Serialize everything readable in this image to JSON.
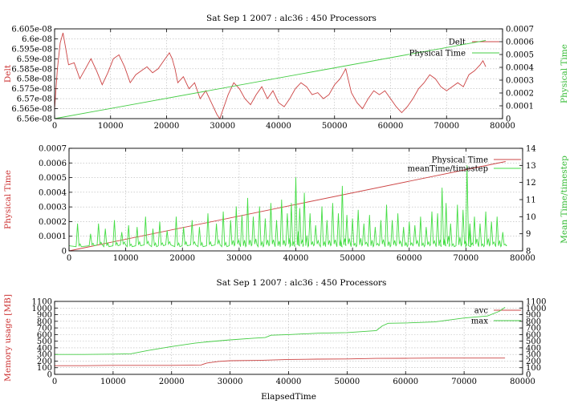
{
  "chart_data": [
    {
      "type": "line",
      "title": "Sat Sep 1 2007 : alc36 : 450 Processors",
      "xlabel": "",
      "ylabel": "Delt",
      "y2label": "Physical Time",
      "xlim": [
        0,
        80000
      ],
      "ylim": [
        6.56e-08,
        6.605e-08
      ],
      "y2lim": [
        0,
        0.0007
      ],
      "grid": true,
      "legend": "top-right",
      "x_ticks": [
        "0",
        "10000",
        "20000",
        "30000",
        "40000",
        "50000",
        "60000",
        "70000",
        "80000"
      ],
      "y_ticks": [
        "6.56e-08",
        "6.565e-08",
        "6.57e-08",
        "6.575e-08",
        "6.58e-08",
        "6.585e-08",
        "6.59e-08",
        "6.595e-08",
        "6.6e-08",
        "6.605e-08"
      ],
      "y2_ticks": [
        "0",
        "0.0001",
        "0.0002",
        "0.0003",
        "0.0004",
        "0.0005",
        "0.0006",
        "0.0007"
      ],
      "series": [
        {
          "name": "Delt",
          "axis": "y",
          "color": "#cc4444",
          "x": [
            0,
            500,
            1000,
            1500,
            2500,
            3500,
            4500,
            5500,
            6500,
            7500,
            8500,
            9500,
            10500,
            11500,
            12500,
            13500,
            14500,
            15500,
            16500,
            17500,
            18500,
            19500,
            20500,
            21000,
            21500,
            22000,
            23000,
            24000,
            25000,
            26000,
            27000,
            28000,
            29000,
            29500,
            30000,
            31000,
            32000,
            33000,
            34000,
            35000,
            36000,
            37000,
            38000,
            39000,
            40000,
            41000,
            42000,
            43000,
            44000,
            45000,
            46000,
            47000,
            48000,
            49000,
            50000,
            51000,
            52000,
            53000,
            54000,
            55000,
            56000,
            57000,
            58000,
            59000,
            60000,
            61000,
            62000,
            63000,
            64000,
            65000,
            66000,
            67000,
            68000,
            69000,
            70000,
            71000,
            72000,
            73000,
            74000,
            75000,
            76000,
            76500,
            77000
          ],
          "values": [
            6.565e-08,
            6.585e-08,
            6.598e-08,
            6.603e-08,
            6.587e-08,
            6.588e-08,
            6.58e-08,
            6.585e-08,
            6.59e-08,
            6.584e-08,
            6.577e-08,
            6.583e-08,
            6.59e-08,
            6.592e-08,
            6.586e-08,
            6.578e-08,
            6.582e-08,
            6.584e-08,
            6.586e-08,
            6.583e-08,
            6.585e-08,
            6.589e-08,
            6.593e-08,
            6.59e-08,
            6.585e-08,
            6.578e-08,
            6.581e-08,
            6.575e-08,
            6.578e-08,
            6.57e-08,
            6.574e-08,
            6.568e-08,
            6.562e-08,
            6.56e-08,
            6.564e-08,
            6.572e-08,
            6.578e-08,
            6.575e-08,
            6.57e-08,
            6.567e-08,
            6.572e-08,
            6.576e-08,
            6.57e-08,
            6.574e-08,
            6.568e-08,
            6.566e-08,
            6.57e-08,
            6.575e-08,
            6.578e-08,
            6.576e-08,
            6.572e-08,
            6.573e-08,
            6.57e-08,
            6.572e-08,
            6.577e-08,
            6.58e-08,
            6.585e-08,
            6.573e-08,
            6.568e-08,
            6.565e-08,
            6.57e-08,
            6.574e-08,
            6.572e-08,
            6.574e-08,
            6.57e-08,
            6.566e-08,
            6.563e-08,
            6.566e-08,
            6.57e-08,
            6.575e-08,
            6.578e-08,
            6.582e-08,
            6.58e-08,
            6.576e-08,
            6.574e-08,
            6.576e-08,
            6.578e-08,
            6.576e-08,
            6.582e-08,
            6.584e-08,
            6.587e-08,
            6.589e-08,
            6.586e-08
          ]
        },
        {
          "name": "Physical Time",
          "axis": "y2",
          "color": "#44cc44",
          "x": [
            0,
            77000
          ],
          "values": [
            0,
            0.00061
          ]
        }
      ]
    },
    {
      "type": "line",
      "title": "",
      "xlabel": "",
      "ylabel": "Physical Time",
      "y2label": "Mean Time/timestep",
      "xlim": [
        0,
        80000
      ],
      "ylim": [
        0,
        0.0007
      ],
      "y2lim": [
        8,
        14
      ],
      "grid": true,
      "legend": "top-right",
      "x_ticks": [
        "0",
        "10000",
        "20000",
        "30000",
        "40000",
        "50000",
        "60000",
        "70000",
        "80000"
      ],
      "y_ticks": [
        "0",
        "0.0001",
        "0.0002",
        "0.0003",
        "0.0004",
        "0.0005",
        "0.0006",
        "0.0007"
      ],
      "y2_ticks": [
        "8",
        "9",
        "10",
        "11",
        "12",
        "13",
        "14"
      ],
      "series": [
        {
          "name": "Physical Time",
          "axis": "y",
          "color": "#cc4444",
          "x": [
            0,
            77000
          ],
          "values": [
            0,
            0.00061
          ]
        },
        {
          "name": "meanTime/timestep",
          "axis": "y2",
          "color": "#44dd44",
          "baseline": 8.3,
          "spikes_x": [
            1500,
            3800,
            5200,
            6400,
            8000,
            9300,
            10500,
            12000,
            13500,
            14800,
            16000,
            17300,
            18900,
            20200,
            21700,
            23000,
            24500,
            26000,
            27200,
            28500,
            29500,
            30500,
            31500,
            32500,
            33600,
            34600,
            35600,
            36600,
            37500,
            38500,
            39200,
            40000,
            40700,
            41500,
            42500,
            43500,
            44600,
            45500,
            46500,
            47500,
            48200,
            49000,
            50000,
            51000,
            52000,
            53000,
            54000,
            55000,
            56000,
            57000,
            58000,
            59000,
            60000,
            61000,
            62000,
            63000,
            64000,
            65000,
            65800,
            66500,
            67300,
            68500,
            69500,
            70200,
            70700,
            71500,
            72500,
            73500,
            74500,
            75500,
            76500
          ],
          "spikes_y": [
            9.6,
            9.0,
            9.6,
            9.3,
            9.8,
            9.1,
            9.5,
            9.4,
            10.0,
            9.3,
            9.7,
            9.2,
            10.0,
            9.4,
            9.8,
            9.4,
            10.2,
            9.6,
            10.3,
            9.8,
            10.6,
            10.1,
            11.1,
            10.0,
            10.6,
            9.9,
            10.8,
            9.8,
            11.0,
            10.2,
            10.8,
            12.3,
            10.5,
            11.4,
            10.2,
            9.5,
            10.6,
            9.8,
            10.8,
            10.2,
            11.8,
            10.1,
            9.9,
            10.4,
            9.6,
            10.1,
            9.4,
            9.8,
            10.7,
            9.8,
            10.2,
            9.4,
            9.7,
            9.5,
            10.0,
            9.4,
            10.3,
            10.2,
            11.7,
            10.8,
            9.6,
            10.7,
            10.4,
            13.0,
            9.6,
            10.0,
            9.6,
            10.3,
            9.7,
            10.0,
            9.1
          ]
        }
      ]
    },
    {
      "type": "line",
      "title": "Sat Sep 1 2007 : alc36 : 450 Processors",
      "xlabel": "ElapsedTime",
      "ylabel": "Memory usage [MB]",
      "y2label": "",
      "xlim": [
        0,
        80000
      ],
      "ylim": [
        0,
        1100
      ],
      "y2lim": [
        0,
        1100
      ],
      "grid": true,
      "legend": "top-right",
      "x_ticks": [
        "0",
        "10000",
        "20000",
        "30000",
        "40000",
        "50000",
        "60000",
        "70000",
        "80000"
      ],
      "y_ticks": [
        "0",
        "100",
        "200",
        "300",
        "400",
        "500",
        "600",
        "700",
        "800",
        "900",
        "1000",
        "1100"
      ],
      "y2_ticks": [
        "0",
        "100",
        "200",
        "300",
        "400",
        "500",
        "600",
        "700",
        "800",
        "900",
        "1000",
        "1100"
      ],
      "series": [
        {
          "name": "avc",
          "axis": "y",
          "color": "#cc4444",
          "x": [
            0,
            5000,
            10000,
            15000,
            20000,
            25000,
            26000,
            28000,
            30000,
            35000,
            40000,
            45000,
            50000,
            55000,
            60000,
            65000,
            70000,
            75000,
            77000
          ],
          "values": [
            130,
            130,
            135,
            135,
            135,
            140,
            170,
            195,
            205,
            210,
            225,
            230,
            232,
            240,
            242,
            245,
            245,
            245,
            245
          ]
        },
        {
          "name": "max",
          "axis": "y",
          "color": "#44cc44",
          "x": [
            0,
            5000,
            10000,
            13000,
            16000,
            20000,
            24000,
            26000,
            30000,
            34000,
            36000,
            37000,
            40000,
            45000,
            50000,
            55000,
            56000,
            57000,
            60000,
            65000,
            70000,
            74000,
            76000,
            77000
          ],
          "values": [
            300,
            300,
            305,
            310,
            360,
            420,
            470,
            490,
            520,
            545,
            555,
            590,
            600,
            620,
            630,
            660,
            730,
            770,
            775,
            790,
            850,
            880,
            950,
            1010
          ]
        }
      ]
    }
  ]
}
